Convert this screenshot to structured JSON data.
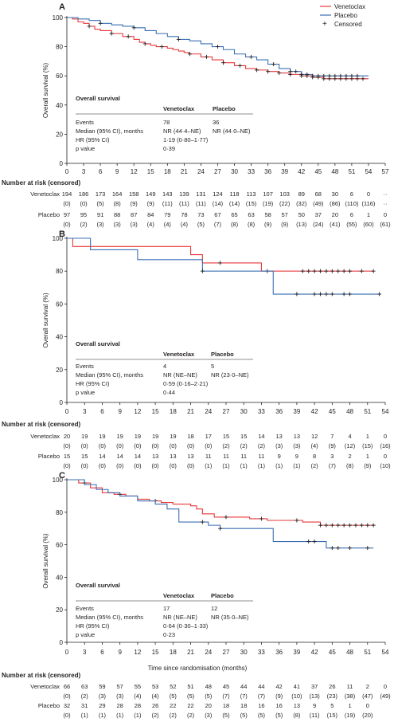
{
  "colors": {
    "venetoclax": "#e8373a",
    "placebo": "#3a6fb5",
    "censored": "#231f20",
    "axis": "#231f20"
  },
  "legend": {
    "venetoclax": "Venetoclax",
    "placebo": "Placebo",
    "censored": "Censored"
  },
  "xlabel": "Time since randomisation (months)",
  "chart_data": [
    {
      "type": "line",
      "panel": "A",
      "ylabel": "Overall survival (%)",
      "xlim": [
        0,
        57
      ],
      "ylim": [
        0,
        100
      ],
      "x_ticks": [
        0,
        3,
        6,
        9,
        12,
        15,
        18,
        21,
        24,
        27,
        30,
        33,
        36,
        39,
        42,
        45,
        48,
        51,
        54,
        57
      ],
      "y_ticks": [
        0,
        20,
        40,
        60,
        80,
        100
      ],
      "series": [
        {
          "name": "Venetoclax",
          "points": [
            [
              0,
              100
            ],
            [
              1,
              99
            ],
            [
              2,
              97
            ],
            [
              3,
              96
            ],
            [
              4,
              94
            ],
            [
              5,
              92
            ],
            [
              6,
              91
            ],
            [
              8,
              89
            ],
            [
              10,
              87
            ],
            [
              12,
              85
            ],
            [
              13,
              83
            ],
            [
              14,
              82
            ],
            [
              15,
              81
            ],
            [
              16,
              80
            ],
            [
              18,
              79
            ],
            [
              19,
              78
            ],
            [
              20,
              77
            ],
            [
              21,
              76
            ],
            [
              22,
              75
            ],
            [
              24,
              73
            ],
            [
              26,
              71
            ],
            [
              28,
              69
            ],
            [
              30,
              67
            ],
            [
              32,
              65
            ],
            [
              34,
              64
            ],
            [
              36,
              63
            ],
            [
              38,
              62
            ],
            [
              40,
              61
            ],
            [
              42,
              60
            ],
            [
              44,
              59
            ],
            [
              46,
              58
            ],
            [
              54,
              58
            ]
          ],
          "censored": [
            4,
            8,
            11,
            14,
            17,
            22,
            25,
            28,
            31,
            34,
            36,
            38,
            40,
            42,
            43,
            44,
            45,
            46,
            47,
            48,
            49,
            50,
            51,
            52,
            53
          ]
        },
        {
          "name": "Placebo",
          "points": [
            [
              0,
              100
            ],
            [
              2,
              99
            ],
            [
              4,
              98
            ],
            [
              6,
              96
            ],
            [
              8,
              95
            ],
            [
              10,
              94
            ],
            [
              12,
              93
            ],
            [
              14,
              91
            ],
            [
              16,
              89
            ],
            [
              18,
              87
            ],
            [
              20,
              85
            ],
            [
              22,
              84
            ],
            [
              24,
              82
            ],
            [
              26,
              80
            ],
            [
              28,
              78
            ],
            [
              30,
              75
            ],
            [
              32,
              73
            ],
            [
              34,
              71
            ],
            [
              36,
              68
            ],
            [
              38,
              65
            ],
            [
              40,
              63
            ],
            [
              42,
              61
            ],
            [
              44,
              60
            ],
            [
              48,
              60
            ],
            [
              54,
              60
            ]
          ],
          "censored": [
            6,
            12,
            20,
            27,
            33,
            37,
            40,
            41,
            42,
            43,
            44,
            45,
            46,
            47,
            48,
            49,
            50,
            51,
            52
          ]
        }
      ],
      "table": {
        "title": "Overall survival",
        "headers": [
          "",
          "Venetoclax",
          "Placebo"
        ],
        "rows": [
          [
            "Events",
            "78",
            "36"
          ],
          [
            "Median (95% CI), months",
            "NR (44·4–NE)",
            "NR (44·0–NE)"
          ],
          [
            "HR (95% CI)",
            "1·19 (0·80–1·77)",
            ""
          ],
          [
            "p value",
            "0·39",
            ""
          ]
        ]
      },
      "risk": {
        "title": "Number at risk (censored)",
        "venetoclax": {
          "label": "Venetoclax",
          "n": [
            "194",
            "186",
            "173",
            "164",
            "158",
            "149",
            "143",
            "139",
            "131",
            "124",
            "118",
            "113",
            "107",
            "103",
            "89",
            "68",
            "30",
            "6",
            "0",
            "··"
          ],
          "c": [
            "(0)",
            "(0)",
            "(5)",
            "(8)",
            "(9)",
            "(9)",
            "(11)",
            "(11)",
            "(11)",
            "(14)",
            "(14)",
            "(15)",
            "(19)",
            "(22)",
            "(32)",
            "(49)",
            "(86)",
            "(110)",
            "(116)",
            "··"
          ]
        },
        "placebo": {
          "label": "Placebo",
          "n": [
            "97",
            "95",
            "91",
            "88",
            "87",
            "84",
            "79",
            "78",
            "73",
            "67",
            "65",
            "63",
            "58",
            "57",
            "50",
            "37",
            "20",
            "6",
            "1",
            "0"
          ],
          "c": [
            "(0)",
            "(2)",
            "(3)",
            "(3)",
            "(3)",
            "(4)",
            "(4)",
            "(4)",
            "(5)",
            "(7)",
            "(8)",
            "(8)",
            "(9)",
            "(9)",
            "(13)",
            "(24)",
            "(41)",
            "(55)",
            "(60)",
            "(61)"
          ]
        }
      }
    },
    {
      "type": "line",
      "panel": "B",
      "ylabel": "Overall survival (%)",
      "xlim": [
        0,
        54
      ],
      "ylim": [
        0,
        100
      ],
      "x_ticks": [
        0,
        3,
        6,
        9,
        12,
        15,
        18,
        21,
        24,
        27,
        30,
        33,
        36,
        39,
        42,
        45,
        48,
        51,
        54
      ],
      "y_ticks": [
        0,
        20,
        40,
        60,
        80,
        100
      ],
      "series": [
        {
          "name": "Venetoclax",
          "points": [
            [
              0,
              100
            ],
            [
              1,
              95
            ],
            [
              21,
              90
            ],
            [
              23,
              85
            ],
            [
              33,
              80
            ],
            [
              52,
              80
            ]
          ],
          "censored": [
            26,
            34,
            40,
            41,
            42,
            43,
            44,
            45,
            46,
            47,
            48,
            50,
            52
          ]
        },
        {
          "name": "Placebo",
          "points": [
            [
              0,
              100
            ],
            [
              4,
              93
            ],
            [
              12,
              87
            ],
            [
              23,
              80
            ],
            [
              35,
              66
            ],
            [
              53,
              66
            ]
          ],
          "censored": [
            23,
            39,
            42,
            43,
            44,
            45,
            47,
            48,
            53
          ]
        }
      ],
      "table": {
        "title": "Overall survival",
        "headers": [
          "",
          "Venetoclax",
          "Placebo"
        ],
        "rows": [
          [
            "Events",
            "4",
            "5"
          ],
          [
            "Median (95% CI), months",
            "NR (NE–NE)",
            "NR (23·0–NE)"
          ],
          [
            "HR (95% CI)",
            "0·59 (0·16–2·21)",
            ""
          ],
          [
            "p value",
            "0·44",
            ""
          ]
        ]
      },
      "risk": {
        "title": "Number at risk (censored)",
        "venetoclax": {
          "label": "Venetoclax",
          "n": [
            "20",
            "19",
            "19",
            "19",
            "19",
            "19",
            "19",
            "18",
            "17",
            "15",
            "15",
            "14",
            "13",
            "13",
            "12",
            "7",
            "4",
            "1",
            "0"
          ],
          "c": [
            "(0)",
            "(0)",
            "(0)",
            "(0)",
            "(0)",
            "(0)",
            "(0)",
            "(0)",
            "(0)",
            "(2)",
            "(2)",
            "(2)",
            "(3)",
            "(3)",
            "(4)",
            "(9)",
            "(12)",
            "(15)",
            "(16)"
          ]
        },
        "placebo": {
          "label": "Placebo",
          "n": [
            "15",
            "15",
            "14",
            "14",
            "14",
            "13",
            "13",
            "13",
            "11",
            "11",
            "11",
            "11",
            "9",
            "9",
            "8",
            "3",
            "2",
            "1",
            "0"
          ],
          "c": [
            "(0)",
            "(0)",
            "(0)",
            "(0)",
            "(0)",
            "(0)",
            "(0)",
            "(0)",
            "(1)",
            "(1)",
            "(1)",
            "(1)",
            "(1)",
            "(1)",
            "(2)",
            "(7)",
            "(8)",
            "(9)",
            "(10)"
          ]
        }
      }
    },
    {
      "type": "line",
      "panel": "C",
      "ylabel": "Overall survival (%)",
      "xlim": [
        0,
        54
      ],
      "ylim": [
        0,
        100
      ],
      "x_ticks": [
        0,
        3,
        6,
        9,
        12,
        15,
        18,
        21,
        24,
        27,
        30,
        33,
        36,
        39,
        42,
        45,
        48,
        51,
        54
      ],
      "y_ticks": [
        0,
        20,
        40,
        60,
        80,
        100
      ],
      "series": [
        {
          "name": "Venetoclax",
          "points": [
            [
              0,
              100
            ],
            [
              2,
              98
            ],
            [
              4,
              95
            ],
            [
              6,
              92
            ],
            [
              8,
              91
            ],
            [
              10,
              90
            ],
            [
              12,
              88
            ],
            [
              14,
              87
            ],
            [
              16,
              86
            ],
            [
              18,
              85
            ],
            [
              21,
              84
            ],
            [
              22,
              82
            ],
            [
              23,
              79
            ],
            [
              25,
              77
            ],
            [
              28,
              77
            ],
            [
              31,
              76
            ],
            [
              34,
              75
            ],
            [
              37,
              75
            ],
            [
              40,
              74
            ],
            [
              43,
              72
            ],
            [
              52,
              72
            ]
          ],
          "censored": [
            3,
            9,
            15,
            27,
            33,
            39,
            43,
            44,
            45,
            46,
            47,
            48,
            49,
            50,
            51,
            52
          ]
        },
        {
          "name": "Placebo",
          "points": [
            [
              0,
              100
            ],
            [
              3,
              97
            ],
            [
              5,
              94
            ],
            [
              7,
              92
            ],
            [
              9,
              90
            ],
            [
              12,
              87
            ],
            [
              15,
              85
            ],
            [
              17,
              82
            ],
            [
              19,
              74
            ],
            [
              24,
              72
            ],
            [
              26,
              70
            ],
            [
              34,
              70
            ],
            [
              35,
              62
            ],
            [
              43,
              62
            ],
            [
              44,
              58
            ],
            [
              52,
              58
            ]
          ],
          "censored": [
            23,
            26,
            41,
            42,
            45,
            46,
            48,
            51
          ]
        }
      ],
      "table": {
        "title": "Overall survival",
        "headers": [
          "",
          "Venetoclax",
          "Placebo"
        ],
        "rows": [
          [
            "Events",
            "17",
            "12"
          ],
          [
            "Median (95% CI), months",
            "NR (NE–NE)",
            "NR (35·0–NE)"
          ],
          [
            "HR (95% CI)",
            "0·64 (0·30–1·33)",
            ""
          ],
          [
            "p value",
            "0·23",
            ""
          ]
        ]
      },
      "risk": {
        "title": "Number at risk (censored)",
        "venetoclax": {
          "label": "Venetoclax",
          "n": [
            "66",
            "63",
            "59",
            "57",
            "55",
            "53",
            "52",
            "51",
            "48",
            "45",
            "44",
            "44",
            "42",
            "41",
            "37",
            "26",
            "11",
            "2",
            "0"
          ],
          "c": [
            "(0)",
            "(2)",
            "(3)",
            "(3)",
            "(4)",
            "(4)",
            "(5)",
            "(5)",
            "(5)",
            "(7)",
            "(7)",
            "(7)",
            "(9)",
            "(10)",
            "(13)",
            "(23)",
            "(38)",
            "(47)",
            "(49)"
          ]
        },
        "placebo": {
          "label": "Placebo",
          "n": [
            "32",
            "31",
            "29",
            "28",
            "28",
            "26",
            "22",
            "22",
            "20",
            "18",
            "18",
            "16",
            "16",
            "13",
            "9",
            "5",
            "1",
            "0"
          ],
          "c": [
            "(0)",
            "(1)",
            "(1)",
            "(1)",
            "(1)",
            "(2)",
            "(2)",
            "(2)",
            "(3)",
            "(5)",
            "(5)",
            "(5)",
            "(5)",
            "(8)",
            "(11)",
            "(15)",
            "(19)",
            "(20)"
          ]
        }
      }
    }
  ]
}
